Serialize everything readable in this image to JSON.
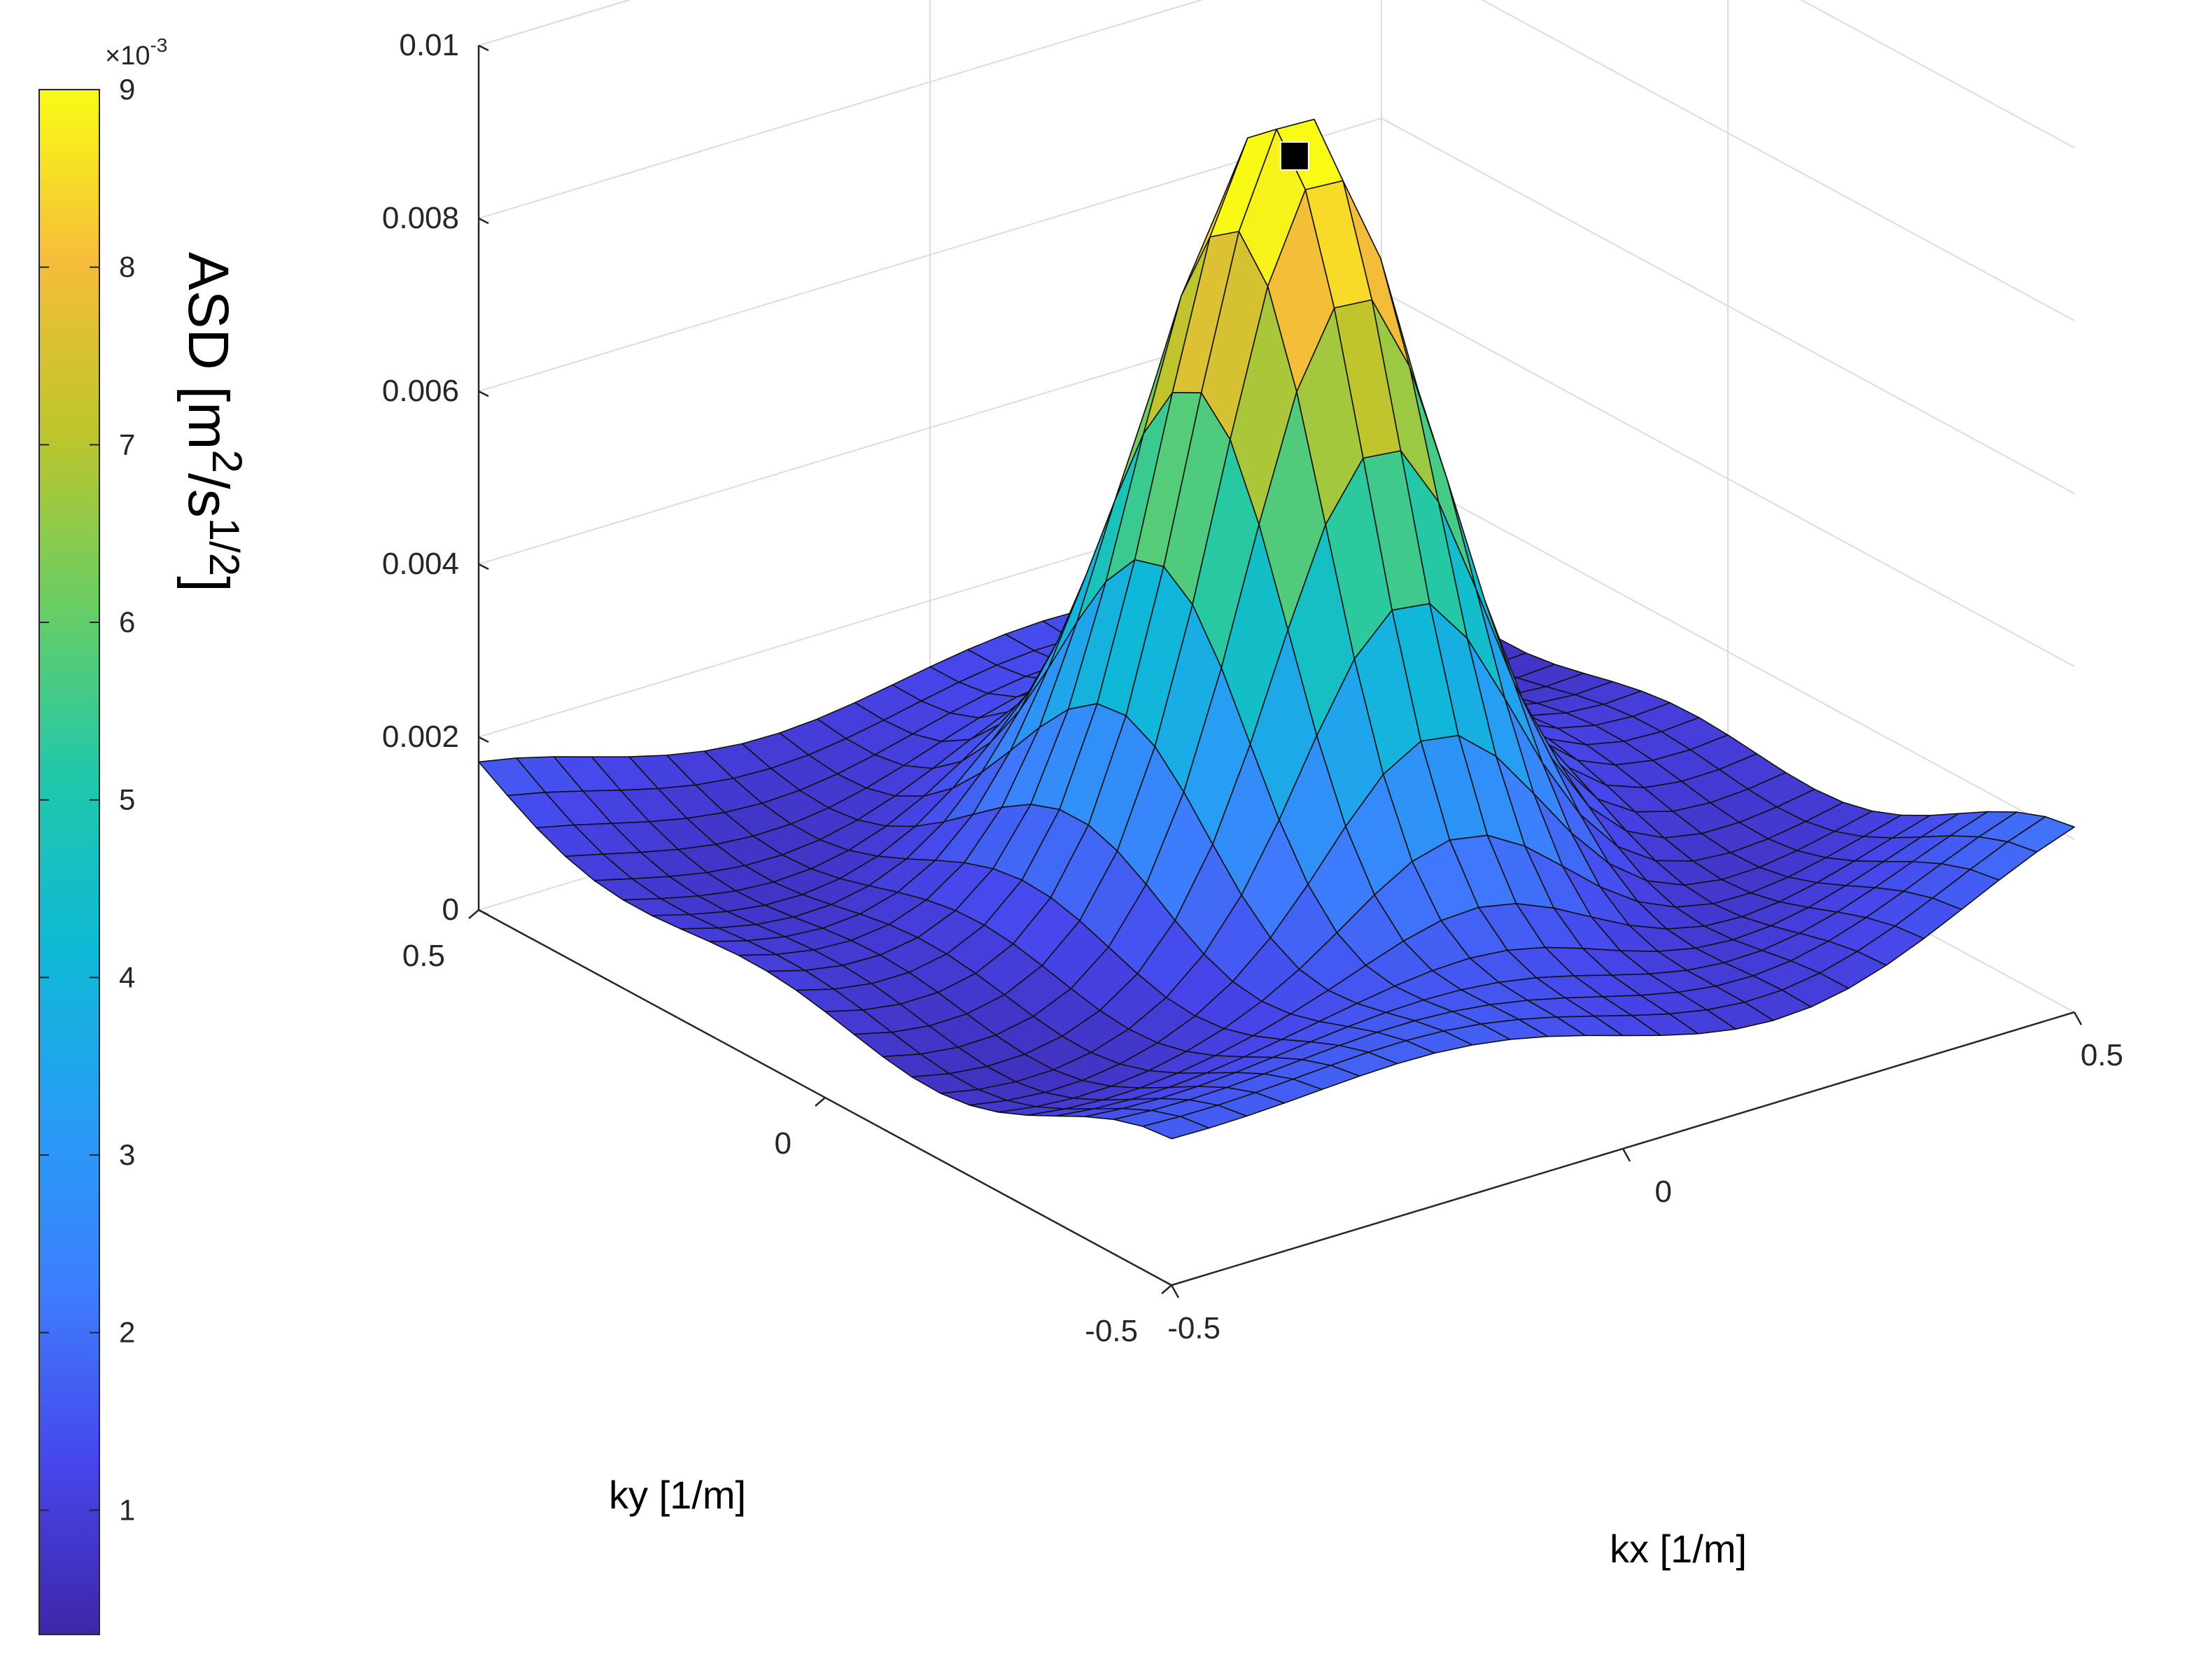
{
  "chart_data": {
    "type": "surface",
    "title": "",
    "xlabel": "kx [1/m]",
    "ylabel": "ky [1/m]",
    "zlabel": "",
    "xlim": [
      -0.5,
      0.5
    ],
    "ylim": [
      -0.5,
      0.5
    ],
    "zlim": [
      0,
      0.01
    ],
    "x_ticks": [
      "-0.5",
      "0",
      "0.5"
    ],
    "y_ticks": [
      "-0.5",
      "0",
      "0.5"
    ],
    "z_ticks": [
      "0",
      "0.002",
      "0.004",
      "0.006",
      "0.008",
      "0.01"
    ],
    "z_tick_values": [
      0,
      0.002,
      0.004,
      0.006,
      0.008,
      0.01
    ],
    "grid": true,
    "colormap": "parula",
    "colormap_stops": [
      "#3e26a8",
      "#4746eb",
      "#3e7dfe",
      "#279df4",
      "#0fb9d6",
      "#1fc8aa",
      "#6acd64",
      "#bdc52c",
      "#f5bd3a",
      "#f9fb15"
    ],
    "surface_model": {
      "description": "Gaussian peak centered near kx=0.02, ky=0 with a low undulating background",
      "peak_value": 0.0089,
      "peak_kx": 0.02,
      "peak_ky": 0.0,
      "width_kx": 0.11,
      "width_ky": 0.13,
      "background_level": 0.0013,
      "grid_points": 25
    },
    "marker": {
      "kx": 0.02,
      "ky": 0.0,
      "z": 0.0089,
      "shape": "square",
      "color": "#000000"
    },
    "colorbar": {
      "label": "ASD [m²/s¹/²]",
      "label_main": "ASD [m",
      "label_sup1": "2",
      "label_mid": "/s",
      "label_sup2": "1/2",
      "label_end": "]",
      "scale_note": "×10⁻³",
      "scale_base": "×10",
      "scale_exp": "-3",
      "ticks": [
        "1",
        "2",
        "3",
        "4",
        "5",
        "6",
        "7",
        "8",
        "9"
      ],
      "tick_values": [
        1,
        2,
        3,
        4,
        5,
        6,
        7,
        8,
        9
      ],
      "range": [
        0.3,
        9
      ]
    }
  }
}
